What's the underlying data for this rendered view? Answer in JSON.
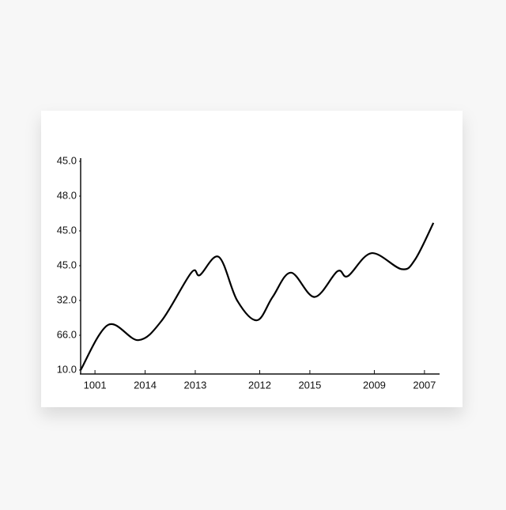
{
  "chart_data": {
    "type": "line",
    "x": [
      0,
      7.7,
      16.1,
      22.7,
      30.9,
      33.3,
      38.6,
      43.7,
      49.2,
      53.6,
      58.7,
      65.3,
      71.7,
      74.6,
      81.2,
      89.6,
      93.4,
      98.5
    ],
    "values": [
      0,
      1.3,
      0.86,
      1.43,
      2.8,
      2.73,
      3.25,
      2.0,
      1.43,
      2.1,
      2.8,
      2.1,
      2.84,
      2.7,
      3.36,
      2.9,
      3.18,
      4.23
    ],
    "color": "#000000",
    "xlim": [
      0,
      100
    ],
    "xticks": [
      {
        "value": 4,
        "label": "1001"
      },
      {
        "value": 18,
        "label": "2014"
      },
      {
        "value": 32,
        "label": "2013"
      },
      {
        "value": 50,
        "label": "2012"
      },
      {
        "value": 64,
        "label": "2015"
      },
      {
        "value": 82,
        "label": "2009"
      },
      {
        "value": 96,
        "label": "2007"
      }
    ],
    "ylim": [
      0,
      6
    ],
    "yticks": [
      {
        "value": 0,
        "label": "10.0"
      },
      {
        "value": 1,
        "label": "66.0"
      },
      {
        "value": 2,
        "label": "32.0"
      },
      {
        "value": 3,
        "label": "45.0"
      },
      {
        "value": 4,
        "label": "45.0"
      },
      {
        "value": 5,
        "label": "48.0"
      },
      {
        "value": 6,
        "label": "45.0"
      }
    ],
    "grid": false
  }
}
